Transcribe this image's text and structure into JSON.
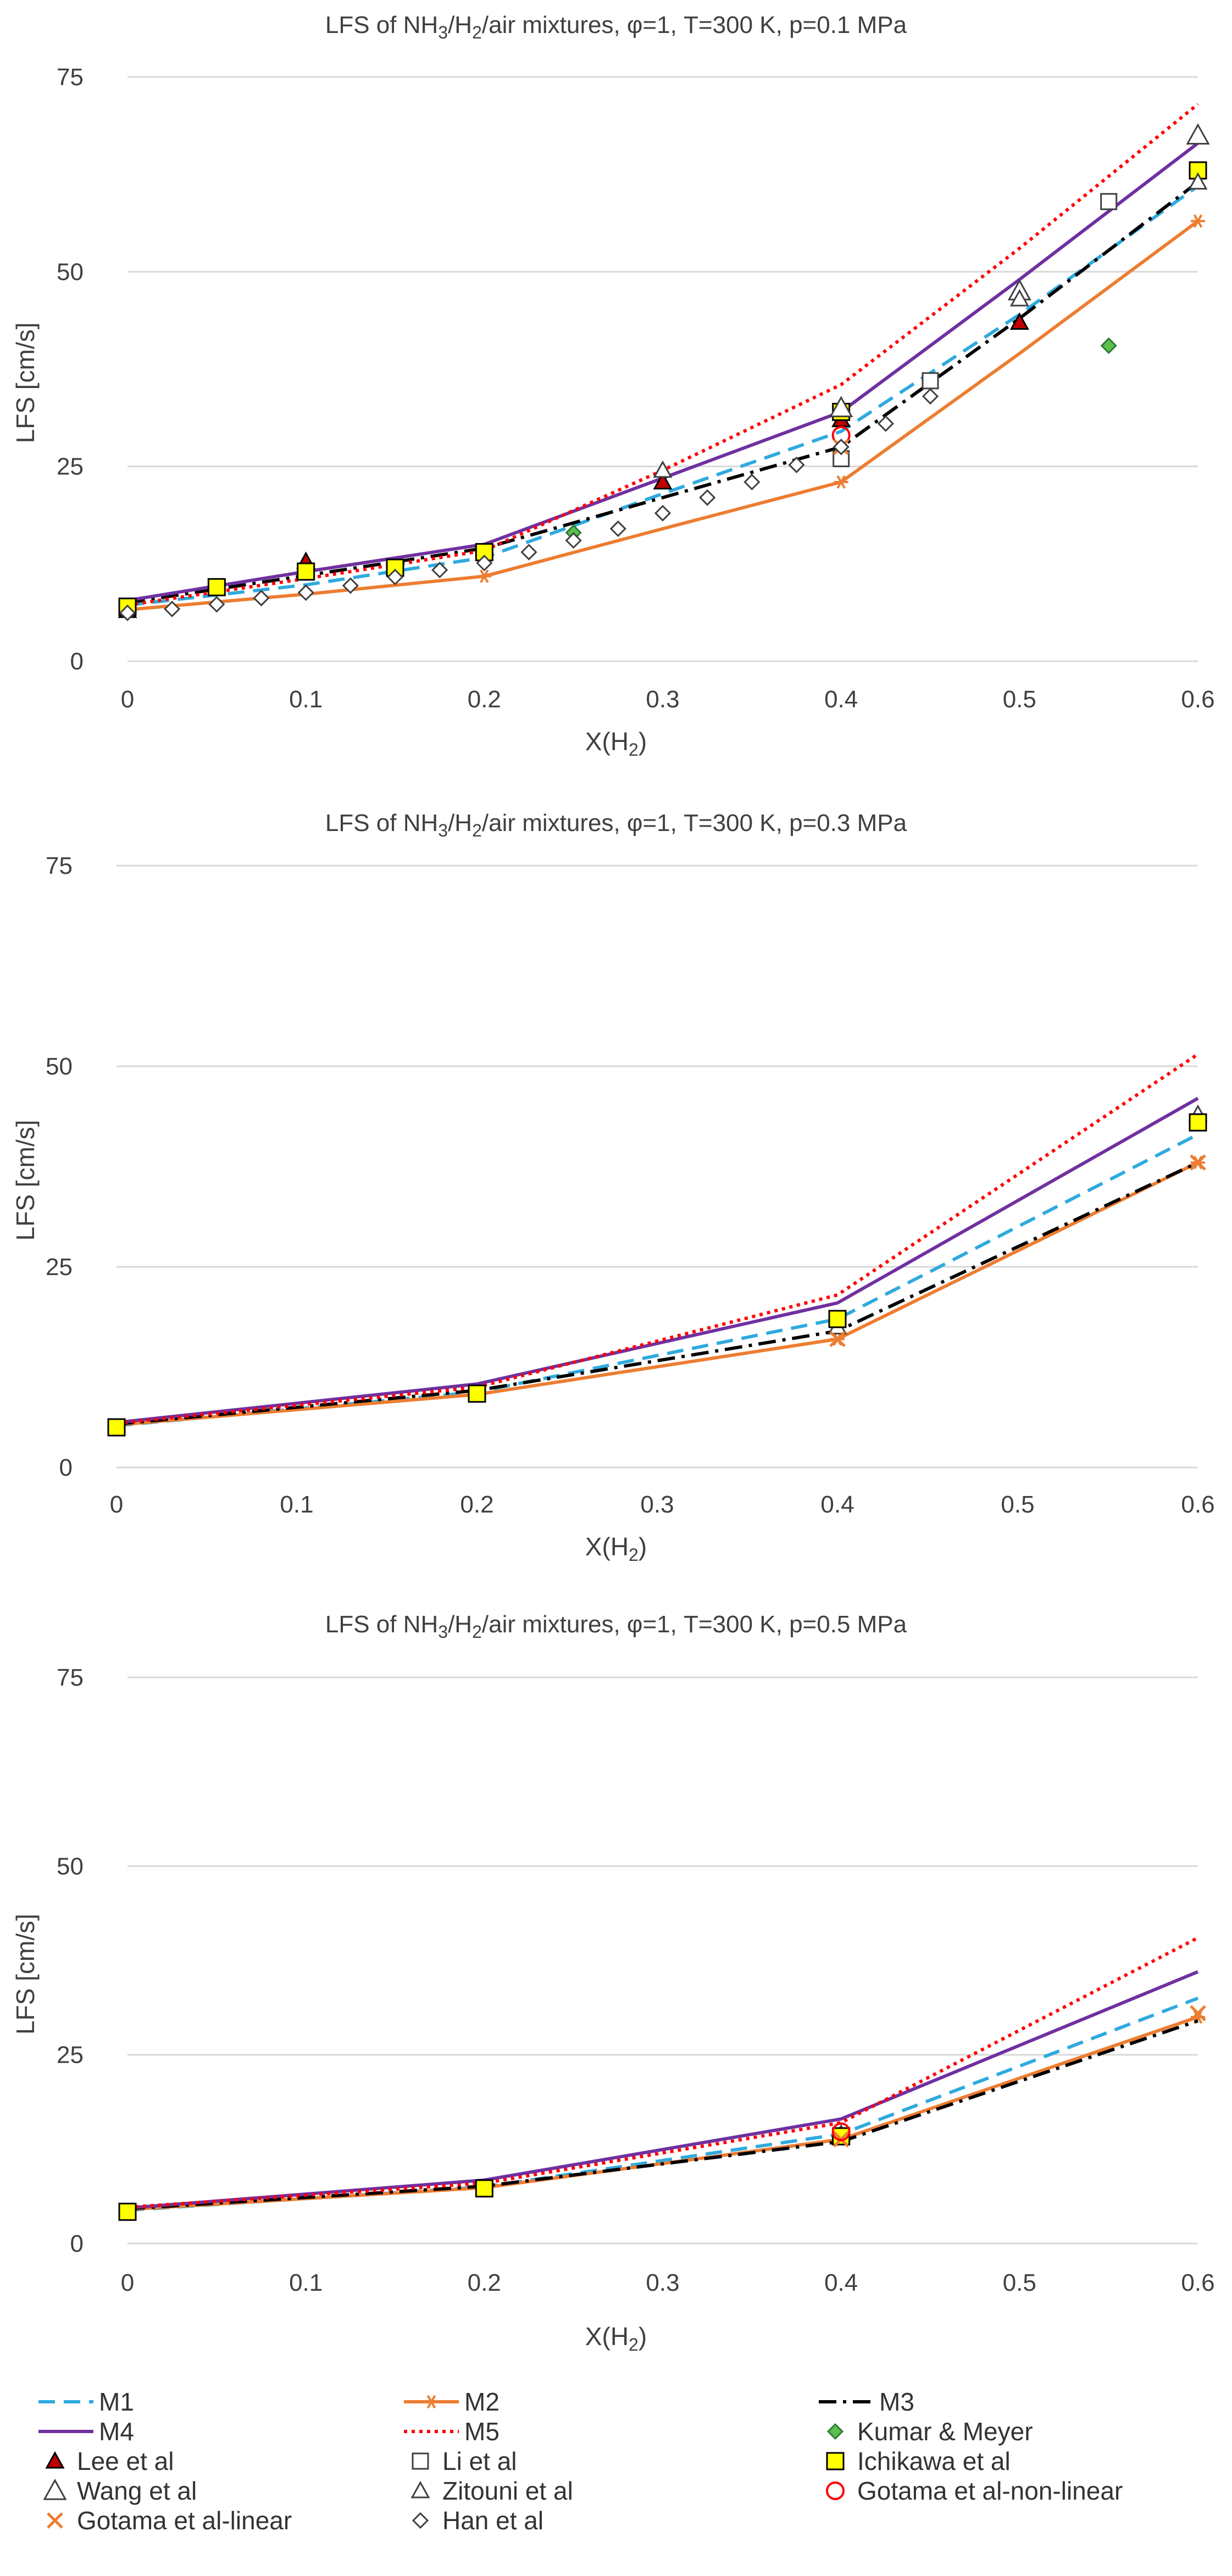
{
  "chart_data": [
    {
      "type": "line",
      "title_parts": [
        "LFS of NH",
        "3",
        "/H",
        "2",
        "/air mixtures, φ=1, T=300 K, p=0.1 MPa"
      ],
      "xlabel_parts": [
        "X(H",
        "2",
        ")"
      ],
      "ylabel": "LFS [cm/s]",
      "xlim": [
        0,
        0.6
      ],
      "ylim": [
        0,
        75
      ],
      "xticks": [
        "0",
        "0.1",
        "0.2",
        "0.3",
        "0.4",
        "0.5",
        "0.6"
      ],
      "yticks": [
        "0",
        "25",
        "50",
        "75"
      ],
      "series": [
        {
          "name": "M1",
          "x": [
            0,
            0.1,
            0.2,
            0.3,
            0.4,
            0.5,
            0.6
          ],
          "y": [
            7.2,
            9.8,
            13.3,
            21.5,
            29.5,
            44.5,
            61.0
          ]
        },
        {
          "name": "M2",
          "x": [
            0,
            0.1,
            0.2,
            0.3,
            0.4,
            0.5,
            0.6
          ],
          "y": [
            6.6,
            8.6,
            10.9,
            17.0,
            23.0,
            39.5,
            56.5
          ]
        },
        {
          "name": "M3",
          "x": [
            0,
            0.1,
            0.2,
            0.3,
            0.4,
            0.5,
            0.6
          ],
          "y": [
            7.5,
            11.0,
            14.5,
            21.0,
            27.5,
            44.0,
            61.5
          ]
        },
        {
          "name": "M4",
          "x": [
            0,
            0.1,
            0.2,
            0.3,
            0.4,
            0.5,
            0.6
          ],
          "y": [
            7.8,
            11.5,
            15.0,
            23.5,
            32.0,
            49.0,
            66.5
          ]
        },
        {
          "name": "M5",
          "x": [
            0,
            0.1,
            0.2,
            0.3,
            0.4,
            0.5,
            0.6
          ],
          "y": [
            7.2,
            10.6,
            14.2,
            24.5,
            35.5,
            53.0,
            71.5
          ]
        },
        {
          "name": "Kumar & Meyer",
          "x": [
            0.25,
            0.4,
            0.55
          ],
          "y": [
            16.5,
            31.5,
            40.5
          ]
        },
        {
          "name": "Lee et al",
          "x": [
            0,
            0.1,
            0.3,
            0.4,
            0.5
          ],
          "y": [
            6.5,
            12.8,
            23.0,
            31.0,
            43.5
          ]
        },
        {
          "name": "Li et al",
          "x": [
            0.4,
            0.45,
            0.55
          ],
          "y": [
            26.0,
            36.0,
            59.0
          ]
        },
        {
          "name": "Ichikawa et al",
          "x": [
            0,
            0.05,
            0.1,
            0.15,
            0.2,
            0.4,
            0.6
          ],
          "y": [
            7.0,
            9.5,
            11.5,
            12.0,
            14.0,
            32.0,
            63.0
          ]
        },
        {
          "name": "Wang et al",
          "x": [
            0.4,
            0.5,
            0.6
          ],
          "y": [
            32.5,
            47.5,
            67.5
          ]
        },
        {
          "name": "Zitouni et al",
          "x": [
            0.3,
            0.5,
            0.6
          ],
          "y": [
            24.5,
            46.5,
            61.5
          ]
        },
        {
          "name": "Gotama et al-non-linear",
          "x": [
            0.4
          ],
          "y": [
            29.0
          ]
        },
        {
          "name": "Gotama et al-linear",
          "x": [
            0.4
          ],
          "y": [
            27.5
          ]
        },
        {
          "name": "Han et al",
          "x": [
            0,
            0.025,
            0.05,
            0.075,
            0.1,
            0.125,
            0.15,
            0.175,
            0.2,
            0.225,
            0.25,
            0.275,
            0.3,
            0.325,
            0.35,
            0.375,
            0.4,
            0.425,
            0.45
          ],
          "y": [
            6.2,
            6.7,
            7.3,
            8.1,
            8.8,
            9.7,
            10.8,
            11.7,
            12.6,
            14.0,
            15.5,
            17.0,
            19.0,
            21.0,
            23.0,
            25.2,
            27.5,
            30.5,
            34.0
          ]
        }
      ]
    },
    {
      "type": "line",
      "title_parts": [
        "LFS of NH",
        "3",
        "/H",
        "2",
        "/air mixtures, φ=1, T=300 K, p=0.3 MPa"
      ],
      "xlabel_parts": [
        "X(H",
        "2",
        ")"
      ],
      "ylabel": "LFS [cm/s]",
      "xlim": [
        0,
        0.6
      ],
      "ylim": [
        0,
        75
      ],
      "xticks": [
        "0",
        "0.1",
        "0.2",
        "0.3",
        "0.4",
        "0.5",
        "0.6"
      ],
      "yticks": [
        "0",
        "25",
        "50",
        "75"
      ],
      "series": [
        {
          "name": "M1",
          "x": [
            0,
            0.2,
            0.4,
            0.6
          ],
          "y": [
            5.2,
            9.4,
            18.5,
            41.5
          ]
        },
        {
          "name": "M2",
          "x": [
            0,
            0.2,
            0.4,
            0.6
          ],
          "y": [
            5.3,
            9.1,
            16.0,
            38.0
          ]
        },
        {
          "name": "M3",
          "x": [
            0,
            0.2,
            0.4,
            0.6
          ],
          "y": [
            5.4,
            9.6,
            17.0,
            38.0
          ]
        },
        {
          "name": "M4",
          "x": [
            0,
            0.2,
            0.4,
            0.6
          ],
          "y": [
            5.6,
            10.4,
            20.5,
            46.0
          ]
        },
        {
          "name": "M5",
          "x": [
            0,
            0.2,
            0.4,
            0.6
          ],
          "y": [
            5.5,
            10.0,
            21.5,
            51.5
          ]
        },
        {
          "name": "Zitouni et al",
          "x": [
            0.4,
            0.6
          ],
          "y": [
            17.5,
            44.0
          ]
        },
        {
          "name": "Ichikawa et al",
          "x": [
            0,
            0.2,
            0.4,
            0.6
          ],
          "y": [
            5.0,
            9.2,
            18.5,
            43.0
          ]
        },
        {
          "name": "Gotama et al-linear",
          "x": [
            0.4,
            0.6
          ],
          "y": [
            16.0,
            38.0
          ]
        }
      ]
    },
    {
      "type": "line",
      "title_parts": [
        "LFS of NH",
        "3",
        "/H",
        "2",
        "/air mixtures, φ=1, T=300 K, p=0.5 MPa"
      ],
      "xlabel_parts": [
        "X(H",
        "2",
        ")"
      ],
      "ylabel": "LFS [cm/s]",
      "xlim": [
        0,
        0.6
      ],
      "ylim": [
        0,
        75
      ],
      "xticks": [
        "0",
        "0.1",
        "0.2",
        "0.3",
        "0.4",
        "0.5",
        "0.6"
      ],
      "yticks": [
        "0",
        "25",
        "50",
        "75"
      ],
      "series": [
        {
          "name": "M1",
          "x": [
            0,
            0.2,
            0.4,
            0.6
          ],
          "y": [
            4.4,
            7.5,
            14.5,
            32.5
          ]
        },
        {
          "name": "M2",
          "x": [
            0,
            0.2,
            0.4,
            0.6
          ],
          "y": [
            4.5,
            7.4,
            13.8,
            30.0
          ]
        },
        {
          "name": "M3",
          "x": [
            0,
            0.2,
            0.4,
            0.6
          ],
          "y": [
            4.6,
            7.6,
            13.5,
            29.5
          ]
        },
        {
          "name": "M4",
          "x": [
            0,
            0.2,
            0.4,
            0.6
          ],
          "y": [
            4.7,
            8.4,
            16.5,
            36.0
          ]
        },
        {
          "name": "M5",
          "x": [
            0,
            0.2,
            0.4,
            0.6
          ],
          "y": [
            4.8,
            8.0,
            16.0,
            40.5
          ]
        },
        {
          "name": "Zitouni et al",
          "x": [
            0.4
          ],
          "y": [
            14.5
          ]
        },
        {
          "name": "Ichikawa et al",
          "x": [
            0,
            0.2,
            0.4
          ],
          "y": [
            4.2,
            7.3,
            14.2
          ]
        },
        {
          "name": "Gotama et al-linear",
          "x": [
            0.4,
            0.6
          ],
          "y": [
            13.8,
            30.5
          ]
        },
        {
          "name": "Gotama et al-non-linear",
          "x": [
            0.4
          ],
          "y": [
            14.8
          ]
        }
      ]
    }
  ],
  "legend": [
    {
      "key": "M1",
      "label": "M1"
    },
    {
      "key": "M2",
      "label": "M2"
    },
    {
      "key": "M3",
      "label": "M3"
    },
    {
      "key": "M4",
      "label": "M4"
    },
    {
      "key": "M5",
      "label": "M5"
    },
    {
      "key": "Kumar & Meyer",
      "label": "Kumar & Meyer"
    },
    {
      "key": "Lee et al",
      "label": "Lee et al"
    },
    {
      "key": "Li et al",
      "label": "Li et al"
    },
    {
      "key": "Ichikawa et al",
      "label": "Ichikawa et al"
    },
    {
      "key": "Wang et al",
      "label": "Wang et al"
    },
    {
      "key": "Zitouni et al",
      "label": "Zitouni et al"
    },
    {
      "key": "Gotama et al-non-linear",
      "label": "Gotama et al-non-linear"
    },
    {
      "key": "Gotama et al-linear",
      "label": "Gotama et al-linear"
    },
    {
      "key": "Han et al",
      "label": "Han et al"
    }
  ],
  "colors": {
    "M1": "#2eaadf",
    "M2": "#ed7d31",
    "M3": "#000000",
    "M4": "#7030a0",
    "M5": "#ff0000",
    "Kumar & Meyer": "#5bbf4e",
    "Lee et al": "#c00000",
    "Li et al": "#404040",
    "Ichikawa et al": "#ffff00",
    "Wang et al": "#404040",
    "Zitouni et al": "#404040",
    "Gotama et al-non-linear": "#ff0000",
    "Gotama et al-linear": "#ed7d31",
    "Han et al": "#404040"
  }
}
